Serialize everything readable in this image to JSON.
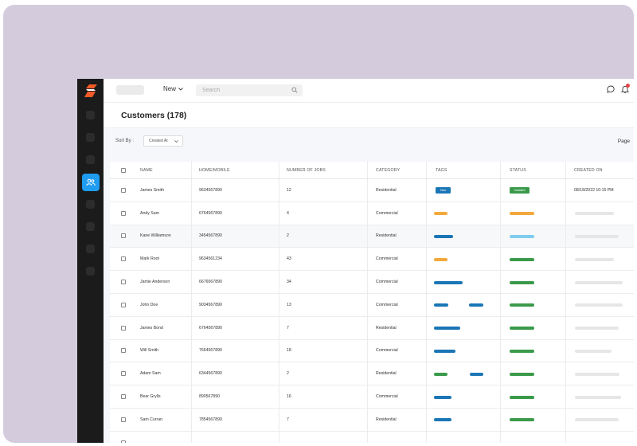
{
  "topbar": {
    "new_label": "New",
    "search_placeholder": "Search"
  },
  "page": {
    "title": "Customers (178)"
  },
  "toolbar": {
    "sort_label": "Sort By :",
    "sort_value": "Created At",
    "page_label": "Page"
  },
  "table": {
    "columns": [
      "NAME",
      "HOME/MOBILE",
      "NUMBER OF JOBS",
      "CATEGORY",
      "TAGS",
      "STATUS",
      "CREATED ON"
    ],
    "rows": [
      {
        "name": "James Smith",
        "phone": "9634567890",
        "jobs": "12",
        "category": "Residential",
        "tag": "New",
        "status": "Installed",
        "created": "08/18/2022 10:15 PM"
      },
      {
        "name": "Andy  Sam",
        "phone": "6764567890",
        "jobs": "4",
        "category": "Commercial",
        "tag": "",
        "status": "",
        "created": ""
      },
      {
        "name": "Kane Williamson",
        "phone": "3454567890",
        "jobs": "2",
        "category": "Residential",
        "tag": "",
        "status": "",
        "created": ""
      },
      {
        "name": "Mark Root",
        "phone": "9634561234",
        "jobs": "43",
        "category": "Commercial",
        "tag": "",
        "status": "",
        "created": ""
      },
      {
        "name": "Jamie Anderson",
        "phone": "6676567890",
        "jobs": "34",
        "category": "Commercial",
        "tag": "",
        "status": "",
        "created": ""
      },
      {
        "name": "John Doe",
        "phone": "9034567890",
        "jobs": "13",
        "category": "Commercial",
        "tag": "",
        "status": "",
        "created": ""
      },
      {
        "name": "James Bond",
        "phone": "6764567890",
        "jobs": "7",
        "category": "Residential",
        "tag": "",
        "status": "",
        "created": ""
      },
      {
        "name": "Will Smith",
        "phone": "7664567890",
        "jobs": "18",
        "category": "Commercial",
        "tag": "",
        "status": "",
        "created": ""
      },
      {
        "name": "Adam Sam",
        "phone": "6344567890",
        "jobs": "2",
        "category": "Residential",
        "tag": "",
        "status": "",
        "created": ""
      },
      {
        "name": "Bear Grylls",
        "phone": "890567890",
        "jobs": "16",
        "category": "Commercial",
        "tag": "",
        "status": "",
        "created": ""
      },
      {
        "name": "Sam Curran",
        "phone": "7854567890",
        "jobs": "7",
        "category": "Residential",
        "tag": "",
        "status": "",
        "created": ""
      }
    ]
  },
  "colors": {
    "sidebar_bg": "#1b1b1b",
    "sidebar_active": "#1f9cf0",
    "logo_orange": "#f25a28",
    "tag_blue": "#1b76b6",
    "tag_orange": "#f2a93b",
    "tag_green": "#3a9a4a",
    "status_green": "#3a9a4a",
    "status_orange": "#f2a93b",
    "status_lightblue": "#7fcdec",
    "placeholder_grey": "#e6e6e6"
  }
}
